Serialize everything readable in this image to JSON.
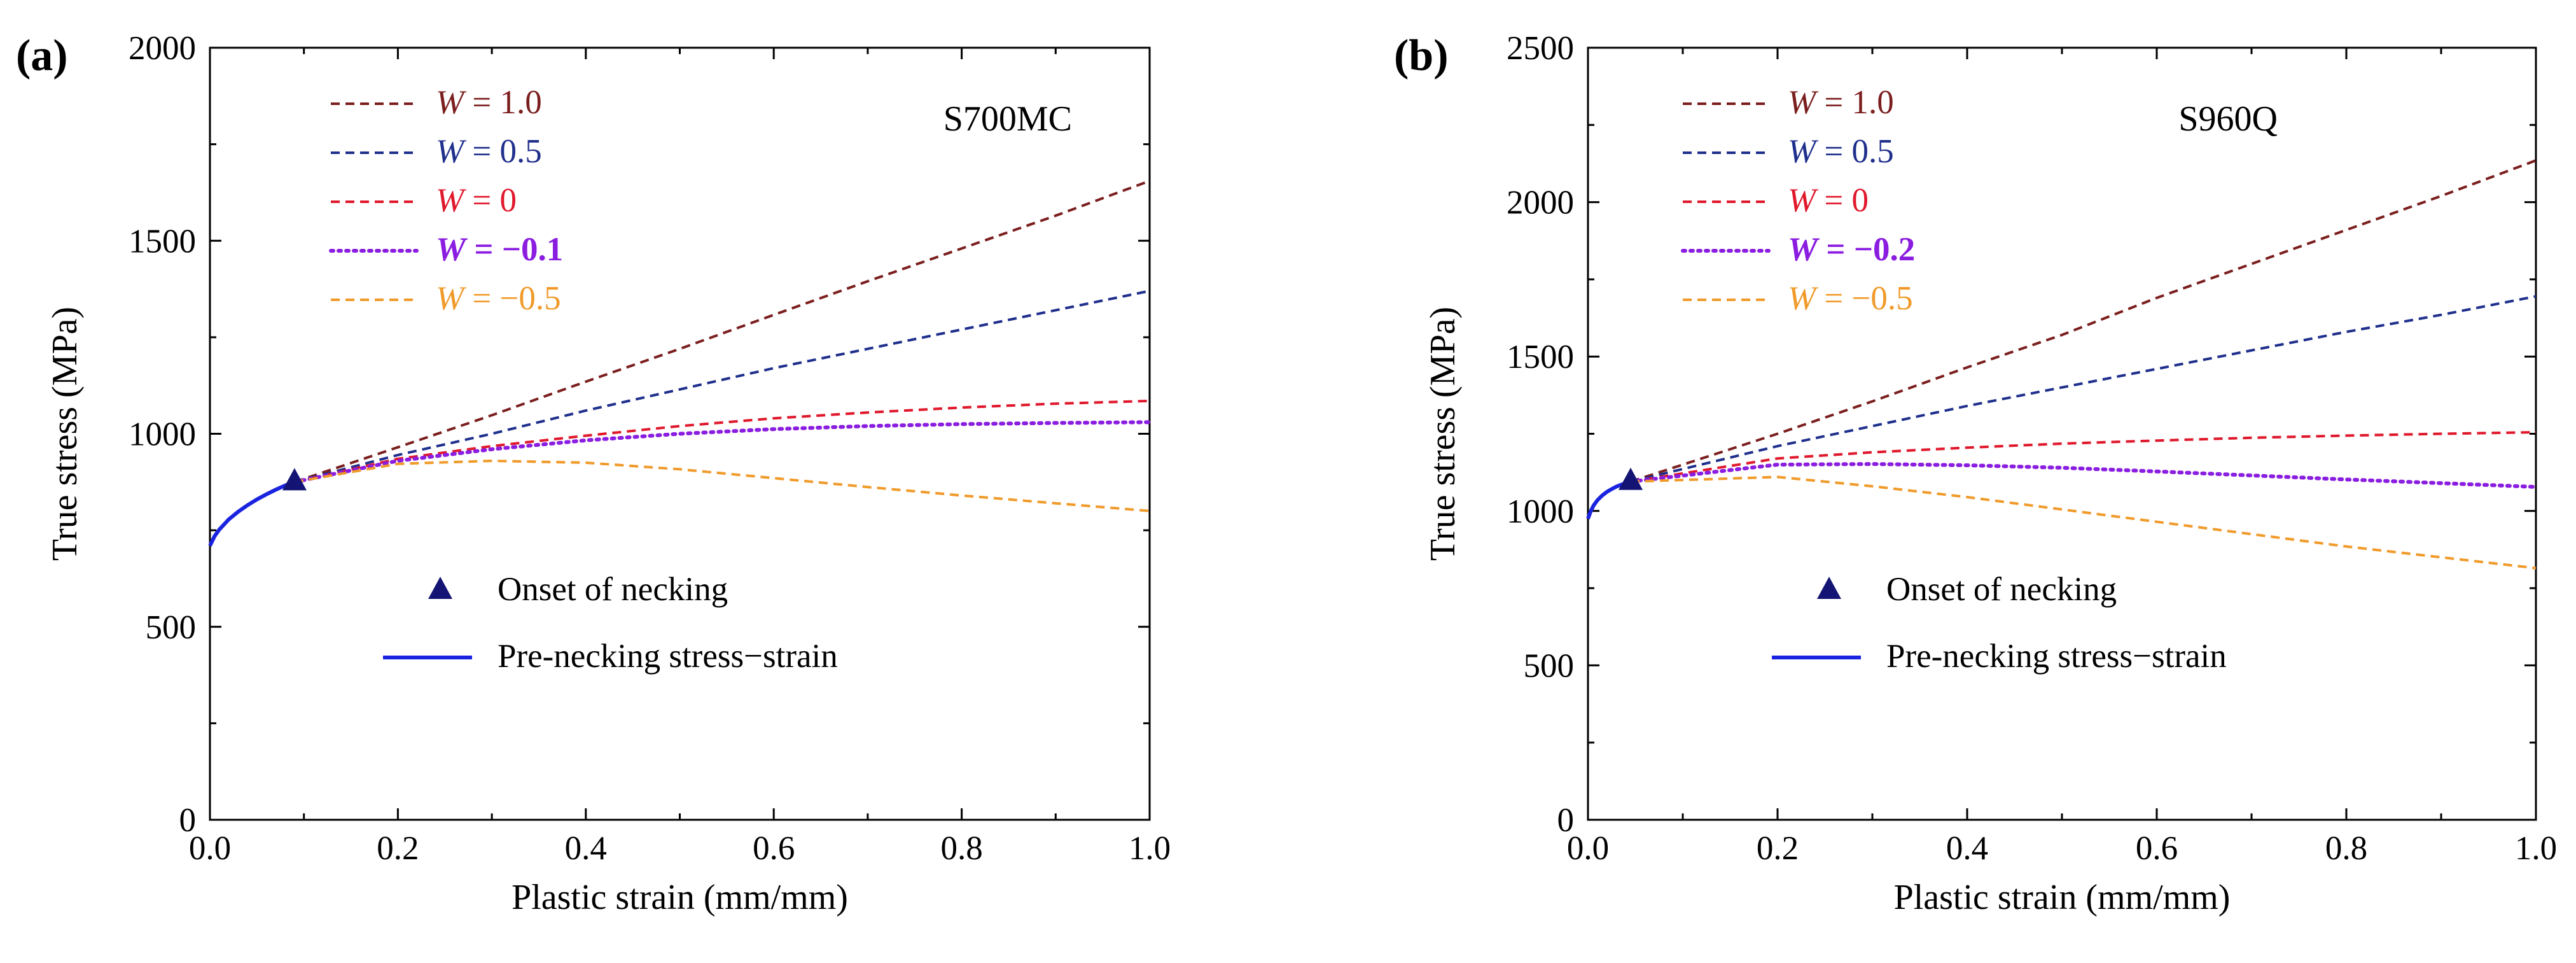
{
  "chart_data": [
    {
      "type": "line",
      "panel_label": "(a)",
      "material": "S700MC",
      "xlabel": "Plastic strain (mm/mm)",
      "ylabel": "True stress (MPa)",
      "xlim": [
        0,
        1.0
      ],
      "ylim": [
        0,
        2000
      ],
      "x_ticks": [
        "0.0",
        "0.2",
        "0.4",
        "0.6",
        "0.8",
        "1.0"
      ],
      "x_tick_values": [
        0,
        0.2,
        0.4,
        0.6,
        0.8,
        1.0
      ],
      "y_ticks": [
        "0",
        "500",
        "1000",
        "1500",
        "2000"
      ],
      "y_tick_values": [
        0,
        500,
        1000,
        1500,
        2000
      ],
      "necking_point": {
        "x": 0.09,
        "y": 875
      },
      "pre_necking": {
        "x": [
          0,
          0.005,
          0.01,
          0.02,
          0.03,
          0.04,
          0.05,
          0.06,
          0.07,
          0.08,
          0.09
        ],
        "y": [
          710,
          735,
          752,
          778,
          798,
          815,
          830,
          843,
          855,
          866,
          875
        ]
      },
      "series": [
        {
          "name_var": "W",
          "name_op": " = ",
          "name_val": "1.0",
          "color": "#7b1e1e",
          "style": "dashed",
          "bold": false,
          "x": [
            0.09,
            0.2,
            0.3,
            0.4,
            0.5,
            0.6,
            0.7,
            0.8,
            0.9,
            1.0
          ],
          "y": [
            875,
            965,
            1048,
            1135,
            1220,
            1308,
            1395,
            1480,
            1565,
            1655
          ]
        },
        {
          "name_var": "W",
          "name_op": " = ",
          "name_val": "0.5",
          "color": "#1f2f8c",
          "style": "dashed",
          "bold": false,
          "x": [
            0.09,
            0.2,
            0.3,
            0.4,
            0.5,
            0.6,
            0.7,
            0.8,
            0.9,
            1.0
          ],
          "y": [
            875,
            945,
            1000,
            1060,
            1115,
            1170,
            1220,
            1270,
            1320,
            1370
          ]
        },
        {
          "name_var": "W",
          "name_op": " = ",
          "name_val": "0",
          "color": "#e0182c",
          "style": "dashed",
          "bold": false,
          "x": [
            0.09,
            0.2,
            0.3,
            0.4,
            0.5,
            0.6,
            0.7,
            0.8,
            0.9,
            1.0
          ],
          "y": [
            875,
            935,
            968,
            995,
            1020,
            1040,
            1055,
            1068,
            1078,
            1085
          ]
        },
        {
          "name_var": "W",
          "name_op": " = ",
          "name_val": "−0.1",
          "color": "#8a1de0",
          "style": "dotted",
          "bold": true,
          "x": [
            0.09,
            0.2,
            0.3,
            0.4,
            0.5,
            0.6,
            0.7,
            0.8,
            0.9,
            1.0
          ],
          "y": [
            875,
            930,
            960,
            983,
            1000,
            1012,
            1020,
            1025,
            1028,
            1030
          ]
        },
        {
          "name_var": "W",
          "name_op": " = ",
          "name_val": "−0.5",
          "color": "#f09a2a",
          "style": "dashed",
          "bold": false,
          "x": [
            0.09,
            0.2,
            0.3,
            0.4,
            0.5,
            0.6,
            0.7,
            0.8,
            0.9,
            1.0
          ],
          "y": [
            875,
            922,
            930,
            925,
            908,
            885,
            862,
            840,
            820,
            800
          ]
        }
      ],
      "marker_legend": "Onset of necking",
      "line_legend": "Pre-necking stress−strain",
      "marker_color": "#141475",
      "pre_necking_color": "#1a24e0"
    },
    {
      "type": "line",
      "panel_label": "(b)",
      "material": "S960Q",
      "xlabel": "Plastic strain (mm/mm)",
      "ylabel": "True stress (MPa)",
      "xlim": [
        0,
        1.0
      ],
      "ylim": [
        0,
        2500
      ],
      "x_ticks": [
        "0.0",
        "0.2",
        "0.4",
        "0.6",
        "0.8",
        "1.0"
      ],
      "x_tick_values": [
        0,
        0.2,
        0.4,
        0.6,
        0.8,
        1.0
      ],
      "y_ticks": [
        "0",
        "500",
        "1000",
        "1500",
        "2000",
        "2500"
      ],
      "y_tick_values": [
        0,
        500,
        1000,
        1500,
        2000,
        2500
      ],
      "necking_point": {
        "x": 0.045,
        "y": 1095
      },
      "pre_necking": {
        "x": [
          0,
          0.003,
          0.006,
          0.01,
          0.015,
          0.02,
          0.025,
          0.03,
          0.035,
          0.04,
          0.045
        ],
        "y": [
          975,
          1000,
          1018,
          1035,
          1050,
          1062,
          1071,
          1079,
          1085,
          1090,
          1095
        ]
      },
      "series": [
        {
          "name_var": "W",
          "name_op": " = ",
          "name_val": "1.0",
          "color": "#7b1e1e",
          "style": "dashed",
          "bold": false,
          "x": [
            0.045,
            0.2,
            0.3,
            0.4,
            0.5,
            0.6,
            0.7,
            0.8,
            0.9,
            1.0
          ],
          "y": [
            1095,
            1250,
            1355,
            1465,
            1570,
            1690,
            1800,
            1910,
            2020,
            2135
          ]
        },
        {
          "name_var": "W",
          "name_op": " = ",
          "name_val": "0.5",
          "color": "#1f2f8c",
          "style": "dashed",
          "bold": false,
          "x": [
            0.045,
            0.2,
            0.3,
            0.4,
            0.5,
            0.6,
            0.7,
            0.8,
            0.9,
            1.0
          ],
          "y": [
            1095,
            1210,
            1275,
            1340,
            1400,
            1460,
            1520,
            1580,
            1635,
            1695
          ]
        },
        {
          "name_var": "W",
          "name_op": " = ",
          "name_val": "0",
          "color": "#e0182c",
          "style": "dashed",
          "bold": false,
          "x": [
            0.045,
            0.2,
            0.3,
            0.4,
            0.5,
            0.6,
            0.7,
            0.8,
            0.9,
            1.0
          ],
          "y": [
            1095,
            1170,
            1190,
            1205,
            1218,
            1228,
            1237,
            1244,
            1250,
            1255
          ]
        },
        {
          "name_var": "W",
          "name_op": " = ",
          "name_val": "−0.2",
          "color": "#8a1de0",
          "style": "dotted",
          "bold": true,
          "x": [
            0.045,
            0.2,
            0.3,
            0.4,
            0.5,
            0.6,
            0.7,
            0.8,
            0.9,
            1.0
          ],
          "y": [
            1095,
            1150,
            1152,
            1148,
            1140,
            1128,
            1115,
            1102,
            1090,
            1078
          ]
        },
        {
          "name_var": "W",
          "name_op": " = ",
          "name_val": "−0.5",
          "color": "#f09a2a",
          "style": "dashed",
          "bold": false,
          "x": [
            0.045,
            0.2,
            0.3,
            0.4,
            0.5,
            0.6,
            0.7,
            0.8,
            0.9,
            1.0
          ],
          "y": [
            1095,
            1110,
            1080,
            1045,
            1005,
            965,
            925,
            885,
            850,
            815
          ]
        }
      ],
      "marker_legend": "Onset of necking",
      "line_legend": "Pre-necking stress−strain",
      "marker_color": "#141475",
      "pre_necking_color": "#1a24e0"
    }
  ]
}
